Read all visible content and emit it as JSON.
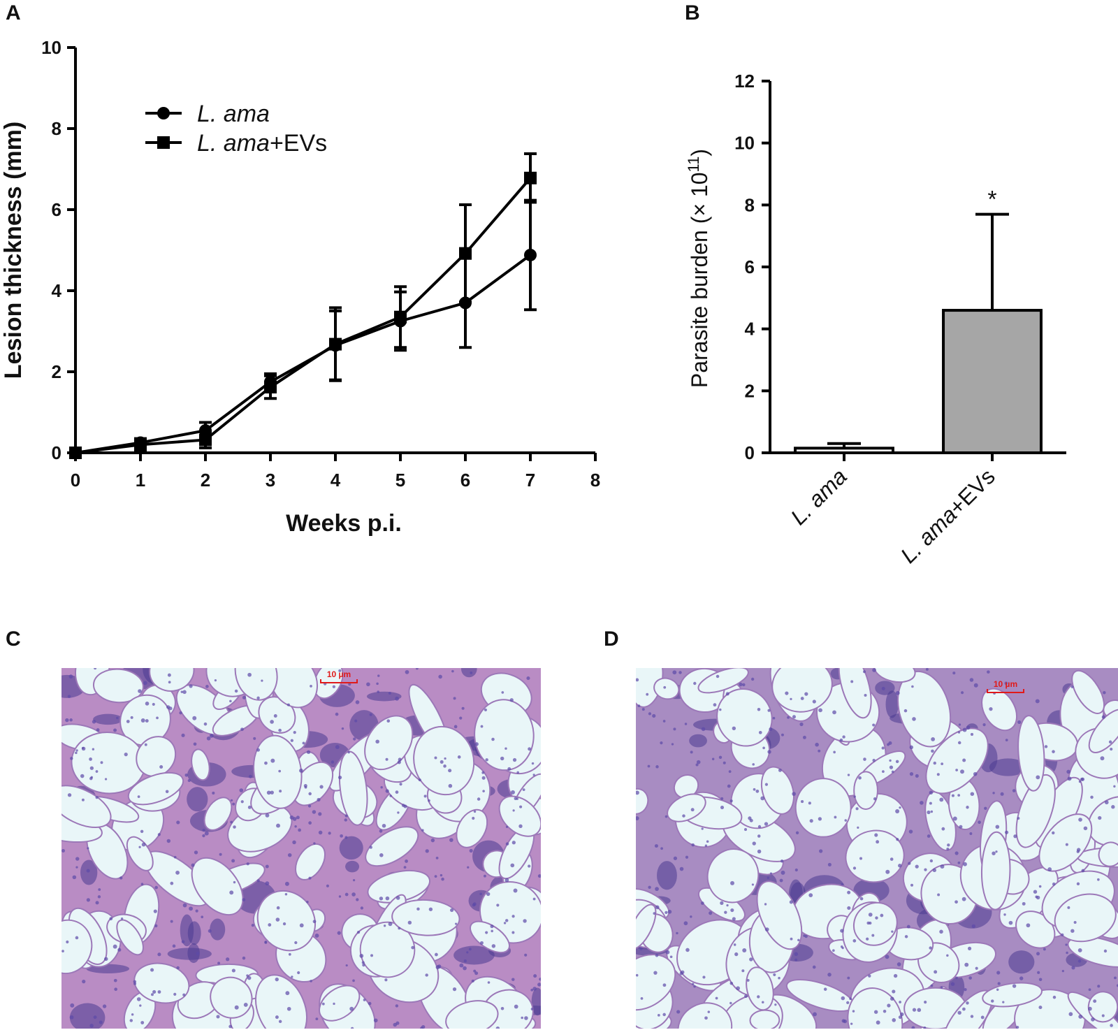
{
  "panels": {
    "a_label": "A",
    "b_label": "B",
    "c_label": "C",
    "d_label": "D"
  },
  "chart_data": [
    {
      "type": "line",
      "panel": "A",
      "xlabel": "Weeks p.i.",
      "ylabel": "Lesion thickness (mm)",
      "xlim": [
        0,
        8
      ],
      "ylim": [
        0,
        10
      ],
      "xticks": [
        0,
        1,
        2,
        3,
        4,
        5,
        6,
        7,
        8
      ],
      "yticks": [
        0,
        2,
        4,
        6,
        8,
        10
      ],
      "grid": false,
      "legend": "top-left",
      "series": [
        {
          "name_italic": "L. ama",
          "name_suffix": "",
          "marker": "circle",
          "x": [
            0,
            1,
            2,
            3,
            4,
            5,
            6,
            7
          ],
          "y": [
            0,
            0.25,
            0.55,
            1.75,
            2.65,
            3.25,
            3.7,
            4.88
          ],
          "err": [
            0,
            0.1,
            0.2,
            0.2,
            0.85,
            0.72,
            1.1,
            1.35
          ]
        },
        {
          "name_italic": "L. ama",
          "name_suffix": "+EVs",
          "marker": "square",
          "x": [
            0,
            1,
            2,
            3,
            4,
            5,
            6,
            7
          ],
          "y": [
            0,
            0.2,
            0.32,
            1.62,
            2.68,
            3.35,
            4.92,
            6.78
          ],
          "err": [
            0,
            0.15,
            0.2,
            0.28,
            0.9,
            0.75,
            1.2,
            0.6
          ]
        }
      ]
    },
    {
      "type": "bar",
      "panel": "B",
      "ylabel_text": "Parasite burden (× 10",
      "ylabel_exp": "11",
      "ylabel_close": ")",
      "ylim": [
        0,
        12
      ],
      "yticks": [
        0,
        2,
        4,
        6,
        8,
        10,
        12
      ],
      "grid": false,
      "categories": [
        {
          "italic": "L. ama",
          "suffix": ""
        },
        {
          "italic": "L. ama",
          "suffix": "+EVs"
        }
      ],
      "values": [
        0.15,
        4.6
      ],
      "errors": [
        0.15,
        3.1
      ],
      "colors": [
        "#ffffff",
        "#a6a6a6"
      ],
      "annotations": [
        "",
        "*"
      ]
    }
  ],
  "micrographs": [
    {
      "panel": "C",
      "scale_label": "10 µm",
      "tissue_color": "#b98cc4"
    },
    {
      "panel": "D",
      "scale_label": "10 µm",
      "tissue_color": "#a88cc2"
    }
  ]
}
